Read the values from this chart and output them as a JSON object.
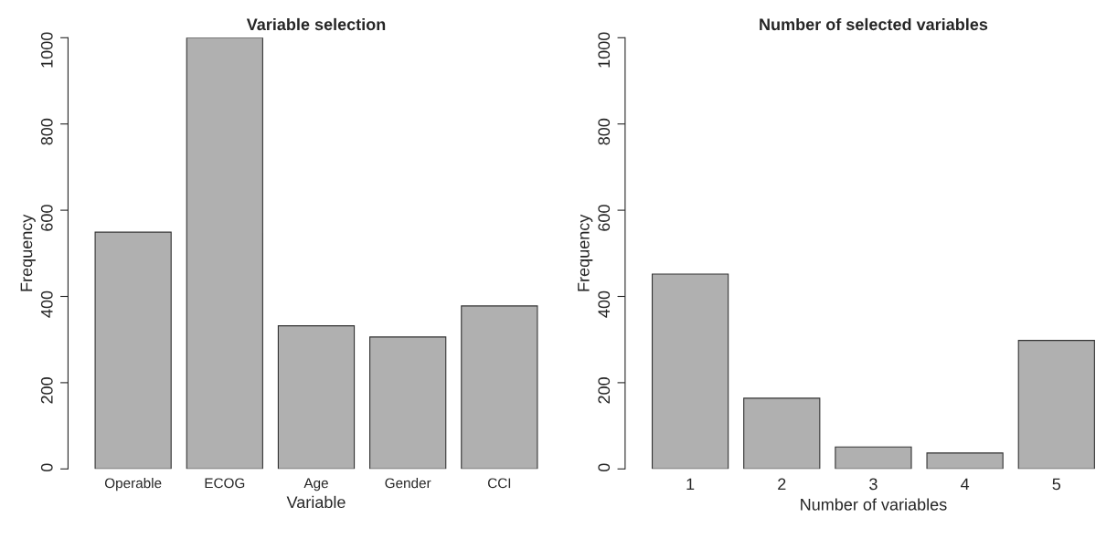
{
  "chart_data": [
    {
      "type": "bar",
      "title": "Variable selection",
      "xlabel": "Variable",
      "ylabel": "Frequency",
      "categories": [
        "Operable",
        "ECOG",
        "Age",
        "Gender",
        "CCI"
      ],
      "values": [
        549,
        1000,
        332,
        306,
        378
      ],
      "color": "#b0b0b0",
      "ylim": [
        0,
        1000
      ],
      "yticks": [
        0,
        200,
        400,
        600,
        800,
        1000
      ],
      "grid": false,
      "legend": false
    },
    {
      "type": "bar",
      "title": "Number of selected variables",
      "xlabel": "Number of variables",
      "ylabel": "Frequency",
      "categories": [
        "1",
        "2",
        "3",
        "4",
        "5"
      ],
      "values": [
        452,
        164,
        51,
        37,
        298
      ],
      "color": "#b0b0b0",
      "ylim": [
        0,
        1000
      ],
      "yticks": [
        0,
        200,
        400,
        600,
        800,
        1000
      ],
      "grid": false,
      "legend": false
    }
  ]
}
